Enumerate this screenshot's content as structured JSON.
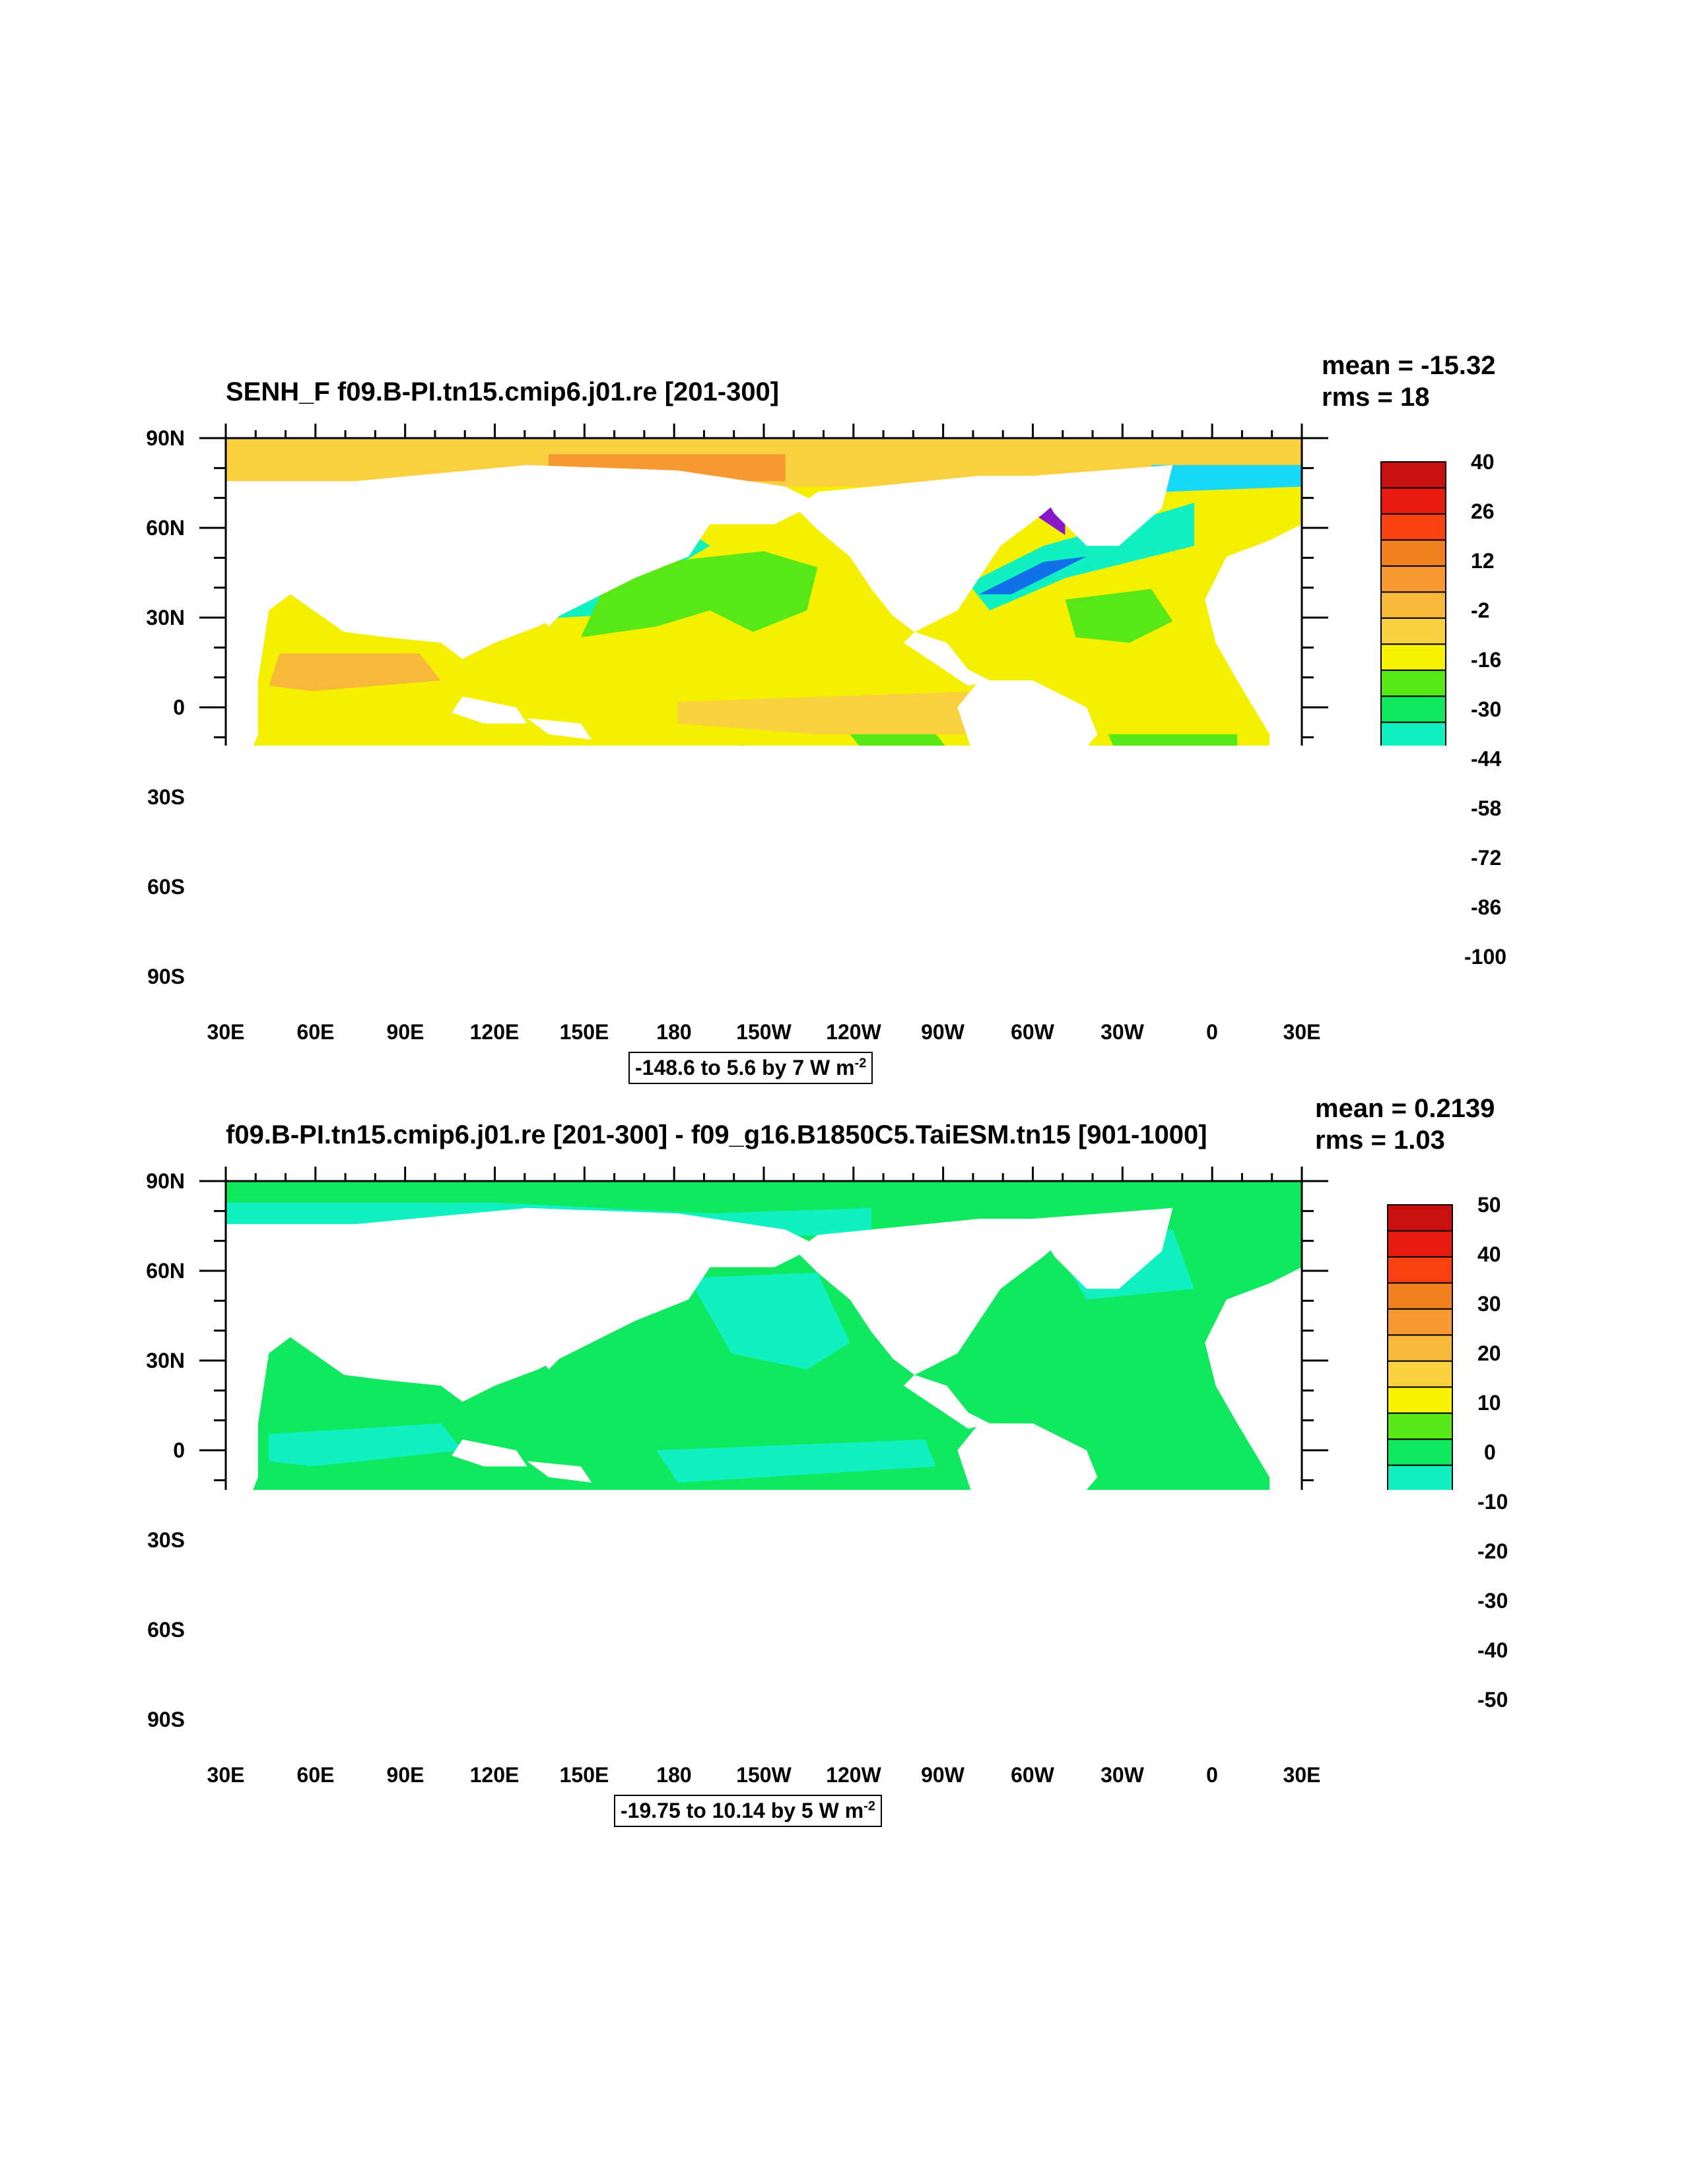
{
  "panels": [
    {
      "title": "SENH_F f09.B-PI.tn15.cmip6.j01.re [201-300]",
      "mean": "mean = -15.32",
      "rms": "rms = 18",
      "lat_labels": [
        "90N",
        "60N",
        "30N",
        "0",
        "30S",
        "60S",
        "90S"
      ],
      "lon_labels": [
        "30E",
        "60E",
        "90E",
        "120E",
        "150E",
        "180",
        "150W",
        "120W",
        "90W",
        "60W",
        "30W",
        "0",
        "30E"
      ],
      "colorbar_labels": [
        "40",
        "26",
        "12",
        "-2",
        "-16",
        "-30",
        "-44",
        "-58",
        "-72",
        "-86",
        "-100"
      ],
      "range_text": "-148.6 to 5.6 by 7  W m",
      "range_exp": "-2",
      "palette": [
        "#c81010",
        "#e81a10",
        "#f84010",
        "#f08020",
        "#f89830",
        "#f8b83a",
        "#f8d040",
        "#f8f400",
        "#58e818",
        "#10e860",
        "#10f0c0",
        "#18d8f8",
        "#10a8f0",
        "#1070e8",
        "#0a10f8",
        "#8818c8",
        "#e010d0",
        "#c8c8c8",
        "#707070"
      ],
      "ocean_base": "#f5f000"
    },
    {
      "title": "f09.B-PI.tn15.cmip6.j01.re [201-300] - f09_g16.B1850C5.TaiESM.tn15 [901-1000]",
      "mean": "mean = 0.2139",
      "rms": "rms = 1.03",
      "lat_labels": [
        "90N",
        "60N",
        "30N",
        "0",
        "30S",
        "60S",
        "90S"
      ],
      "lon_labels": [
        "30E",
        "60E",
        "90E",
        "120E",
        "150E",
        "180",
        "150W",
        "120W",
        "90W",
        "60W",
        "30W",
        "0",
        "30E"
      ],
      "colorbar_labels": [
        "50",
        "40",
        "30",
        "20",
        "10",
        "0",
        "-10",
        "-20",
        "-30",
        "-40",
        "-50"
      ],
      "range_text": "-19.75 to 10.14 by 5  W m",
      "range_exp": "-2",
      "palette": [
        "#c81010",
        "#e81a10",
        "#f84010",
        "#f08020",
        "#f89830",
        "#f8b83a",
        "#f8d040",
        "#f8f400",
        "#58e818",
        "#10e860",
        "#10f0c0",
        "#18d8f8",
        "#10a8f0",
        "#1070e8",
        "#0a10f8",
        "#8818c8",
        "#e010d0",
        "#c8c8c8",
        "#707070"
      ],
      "ocean_base": "#10e860"
    }
  ]
}
